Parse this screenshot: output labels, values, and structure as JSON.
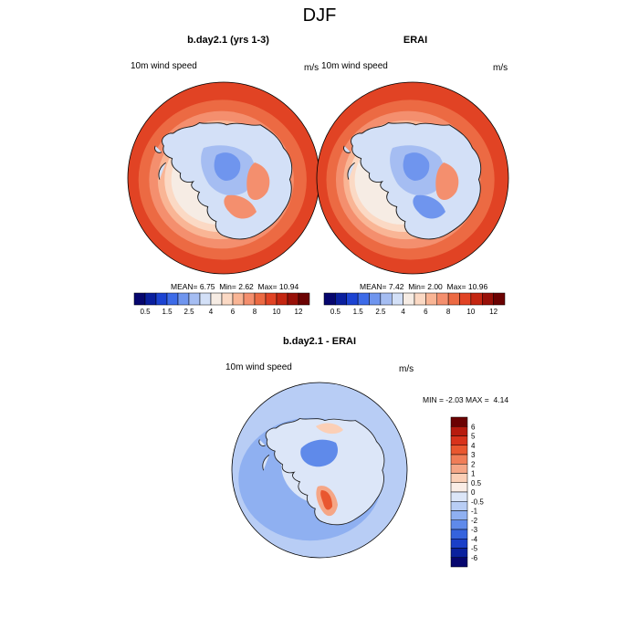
{
  "figure": {
    "title": "DJF"
  },
  "panels": [
    {
      "id": "model",
      "title": "b.day2.1 (yrs 1-3)",
      "variable": "10m wind speed",
      "units": "m/s",
      "stats": {
        "mean": "6.75",
        "min": "2.62",
        "max": "10.94"
      }
    },
    {
      "id": "obs",
      "title": "ERAI",
      "variable": "10m wind speed",
      "units": "m/s",
      "stats": {
        "mean": "7.42",
        "min": "2.00",
        "max": "10.96"
      }
    },
    {
      "id": "diff",
      "title": "b.day2.1 - ERAI",
      "variable": "10m wind speed",
      "units": "m/s",
      "stats": {
        "min": "-2.03",
        "max": "4.14"
      }
    }
  ],
  "labels": {
    "mean_label": "MEAN=",
    "min_label": "Min=",
    "max_label": "Max=",
    "diff_min_label": "MIN =",
    "diff_max_label": "MAX ="
  },
  "colorbars": {
    "abs": {
      "orientation": "horizontal",
      "colors": [
        "#06066e",
        "#0a1f9e",
        "#1c43d2",
        "#3d6be8",
        "#6f95ee",
        "#a5bdf2",
        "#d3e0f7",
        "#f6ece4",
        "#fbd9c4",
        "#f9b595",
        "#f48f6e",
        "#ec6a43",
        "#e14324",
        "#c42611",
        "#981008",
        "#6b0202"
      ],
      "tick_labels": [
        "0.5",
        "1.5",
        "2.5",
        "4",
        "6",
        "8",
        "10",
        "12"
      ],
      "tick_after_index": [
        0,
        2,
        4,
        6,
        8,
        10,
        12,
        14
      ]
    },
    "diff": {
      "orientation": "vertical",
      "colors_top_to_bottom": [
        "#6b0202",
        "#b71b0e",
        "#d8331b",
        "#e9572f",
        "#f07d57",
        "#f5a686",
        "#fbcfb6",
        "#faede6",
        "#dce6f8",
        "#b8cdf5",
        "#8fb0f1",
        "#5f8aea",
        "#3563dd",
        "#1a3fc8",
        "#0a219e",
        "#06066e"
      ],
      "tick_labels": [
        "6",
        "5",
        "4",
        "3",
        "2",
        "1",
        "0.5",
        "0",
        "-0.5",
        "-1",
        "-2",
        "-3",
        "-4",
        "-5",
        "-6"
      ]
    }
  },
  "map_colors": {
    "abs_ring": [
      "#ec6a43",
      "#f48f6e",
      "#f9b595",
      "#fbd9c4",
      "#f6ece4"
    ],
    "abs_outer": "#e14324",
    "abs_low_a": "#a5bdf2",
    "abs_low_b": "#6f95ee",
    "abs_low_c": "#d3e0f7",
    "abs_high": "#f48f6e",
    "diff_base": "#b8cdf5",
    "diff_mid": "#8fb0f1",
    "diff_light": "#dce6f8",
    "diff_deep": "#5f8aea",
    "diff_pos": "#f5a686",
    "diff_pos_strong": "#e9572f",
    "diff_pos_light": "#fbcfb6",
    "coast": "#1a1a1a"
  }
}
